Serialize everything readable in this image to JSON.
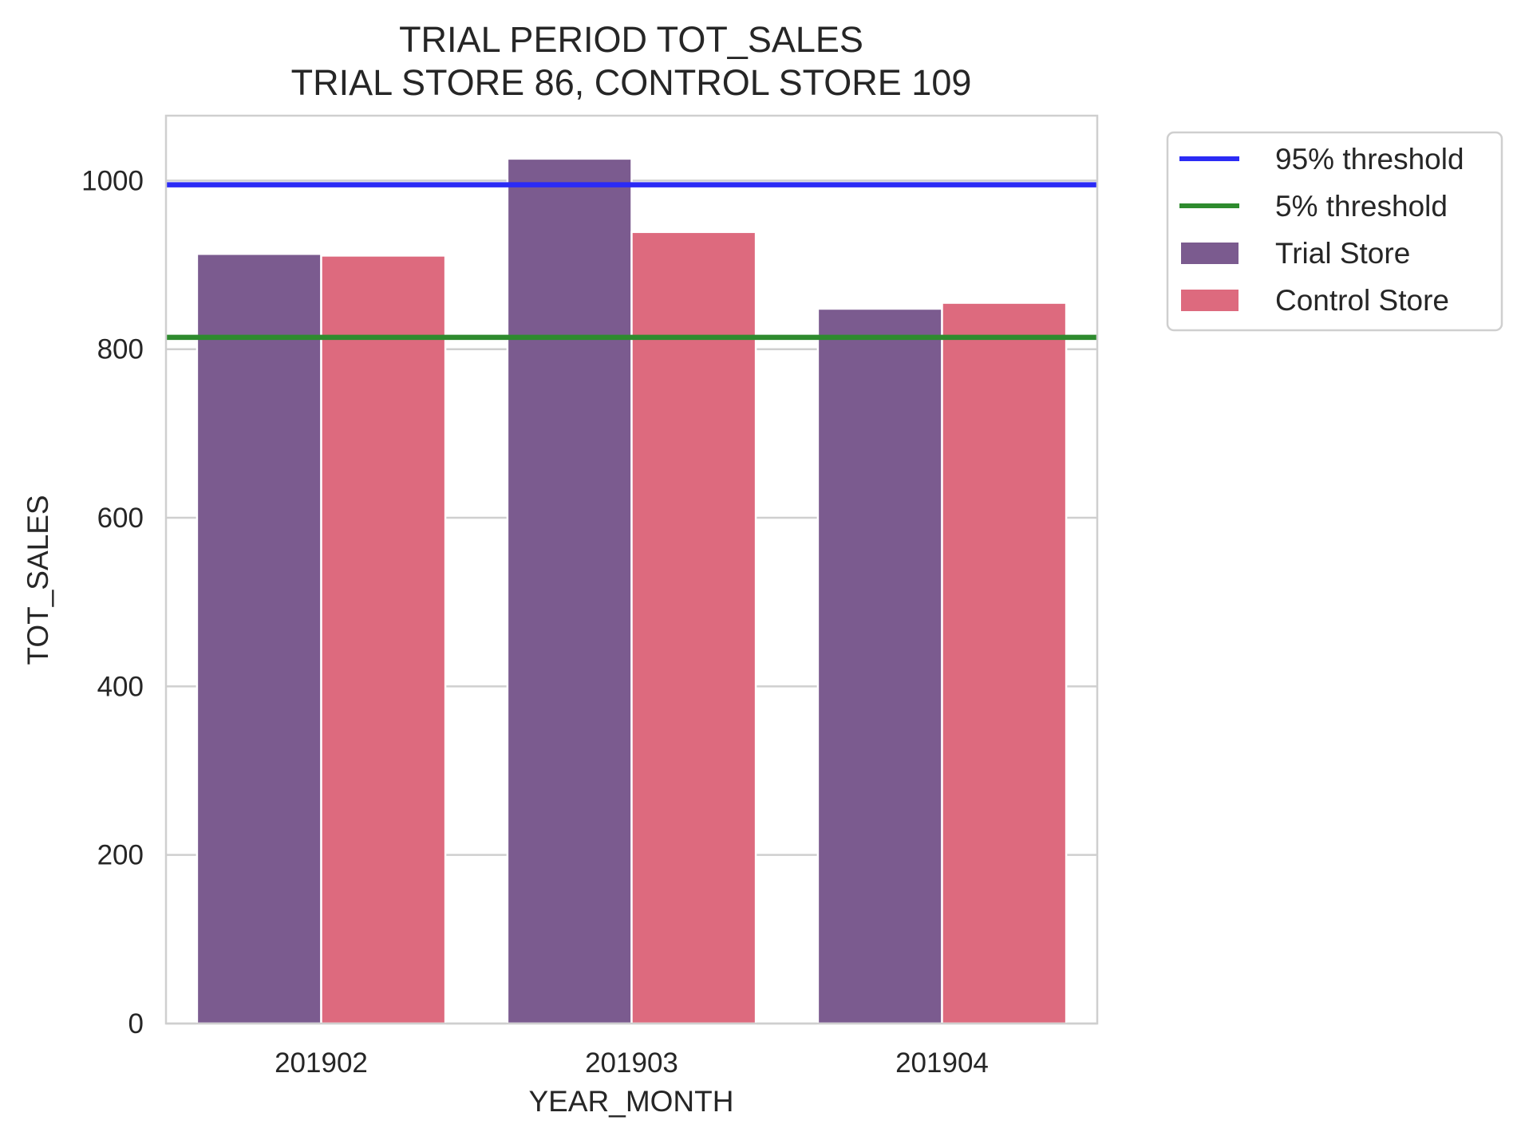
{
  "chart_data": {
    "type": "bar",
    "title": [
      "TRIAL PERIOD TOT_SALES",
      "TRIAL STORE 86, CONTROL STORE 109"
    ],
    "xlabel": "YEAR_MONTH",
    "ylabel": "TOT_SALES",
    "categories": [
      "201902",
      "201903",
      "201904"
    ],
    "ylim": [
      0,
      1077
    ],
    "yticks": [
      0,
      200,
      400,
      600,
      800,
      1000
    ],
    "grid": "horizontal",
    "series": [
      {
        "name": "Trial Store",
        "color": "#7b5b8f",
        "values": [
          913,
          1026,
          848
        ]
      },
      {
        "name": "Control Store",
        "color": "#dd6a7e",
        "values": [
          911,
          939,
          855
        ]
      }
    ],
    "reference_lines": [
      {
        "name": "95% threshold",
        "y": 995,
        "color": "#2b2bf5"
      },
      {
        "name": "5% threshold",
        "y": 814,
        "color": "#2e8b2e"
      }
    ],
    "legend": {
      "placement": "outside-right",
      "entries": [
        "95% threshold",
        "5% threshold",
        "Trial Store",
        "Control Store"
      ]
    }
  }
}
